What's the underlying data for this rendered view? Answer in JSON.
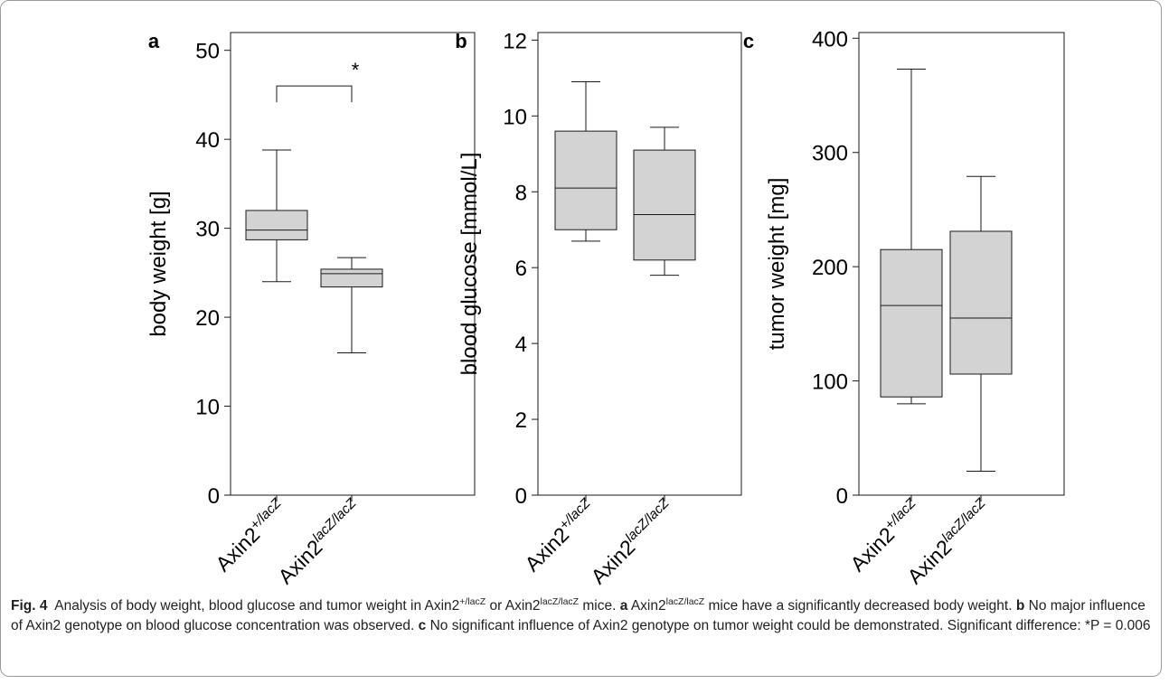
{
  "chart_data": [
    {
      "type": "box",
      "panel_label": "a",
      "ylabel": "body weight [g]",
      "ylim": [
        0,
        52
      ],
      "yticks": [
        0,
        10,
        20,
        30,
        40,
        50
      ],
      "categories": [
        {
          "base": "Axin2",
          "sup": "+/lacZ"
        },
        {
          "base": "Axin2",
          "sup": "lacZ/lacZ"
        }
      ],
      "boxes": [
        {
          "whisker_low": 24.0,
          "q1": 28.7,
          "median": 29.8,
          "q3": 32.0,
          "whisker_high": 38.8
        },
        {
          "whisker_low": 16.0,
          "q1": 23.4,
          "median": 24.9,
          "q3": 25.4,
          "whisker_high": 26.7
        }
      ],
      "significance": {
        "between": [
          0,
          1
        ],
        "y": 46,
        "label": "*"
      }
    },
    {
      "type": "box",
      "panel_label": "b",
      "ylabel": "blood glucose [mmol/L]",
      "ylim": [
        0,
        12.2
      ],
      "yticks": [
        0,
        2,
        4,
        6,
        8,
        10,
        12
      ],
      "categories": [
        {
          "base": "Axin2",
          "sup": "+/lacZ"
        },
        {
          "base": "Axin2",
          "sup": "lacZ/lacZ"
        }
      ],
      "boxes": [
        {
          "whisker_low": 6.7,
          "q1": 7.0,
          "median": 8.1,
          "q3": 9.6,
          "whisker_high": 10.9
        },
        {
          "whisker_low": 5.8,
          "q1": 6.2,
          "median": 7.4,
          "q3": 9.1,
          "whisker_high": 9.7
        }
      ]
    },
    {
      "type": "box",
      "panel_label": "c",
      "ylabel": "tumor weight [mg]",
      "ylim": [
        0,
        405
      ],
      "yticks": [
        0,
        100,
        200,
        300,
        400
      ],
      "categories": [
        {
          "base": "Axin2",
          "sup": "+/lacZ"
        },
        {
          "base": "Axin2",
          "sup": "lacZ/lacZ"
        }
      ],
      "boxes": [
        {
          "whisker_low": 80,
          "q1": 86,
          "median": 166,
          "q3": 215,
          "whisker_high": 373
        },
        {
          "whisker_low": 21,
          "q1": 106,
          "median": 155,
          "q3": 231,
          "whisker_high": 279
        }
      ]
    }
  ],
  "caption": {
    "fig_label": "Fig. 4",
    "p1": "Analysis of body weight, blood glucose and tumor weight in Axin2",
    "sup1": "+/lacZ",
    "p2": " or Axin2",
    "sup2": "lacZ/lacZ",
    "p3": " mice. ",
    "a_label": "a",
    "p4": " Axin2",
    "sup3": "lacZ/lacZ",
    "p5": " mice have a significantly decreased body weight. ",
    "b_label": "b",
    "p6": " No major influence of Axin2 genotype on blood glucose concentration was observed. ",
    "c_label": "c",
    "p7": " No significant influence of Axin2 genotype on tumor weight could be demonstrated. Significant difference: *P = 0.006"
  },
  "colors": {
    "box_fill": "#d3d3d3",
    "stroke": "#1a1a1a",
    "frame": "#9a9a9a"
  }
}
